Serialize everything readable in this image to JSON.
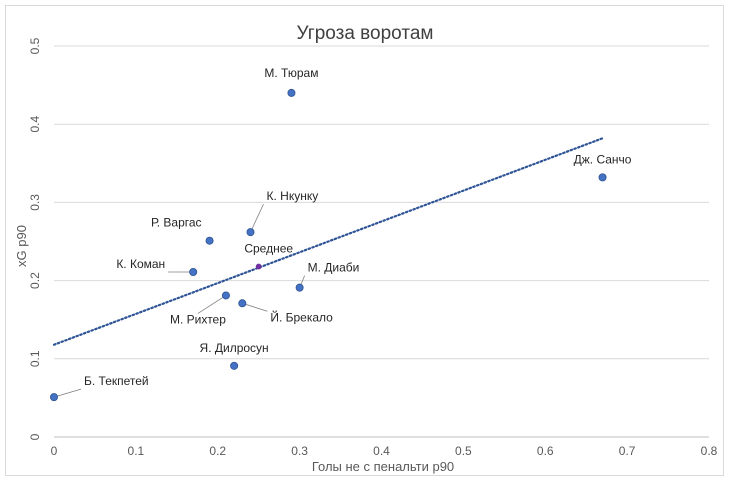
{
  "chart_data": {
    "type": "scatter",
    "title": "Угроза воротам",
    "xlabel": "Голы не с пенальти p90",
    "ylabel": "xG p90",
    "xlim": [
      0,
      0.8
    ],
    "ylim": [
      0,
      0.5
    ],
    "x_ticks": [
      "0",
      "0.1",
      "0.2",
      "0.3",
      "0.4",
      "0.5",
      "0.6",
      "0.7",
      "0.8"
    ],
    "y_ticks": [
      "0",
      "0.1",
      "0.2",
      "0.3",
      "0.4",
      "0.5"
    ],
    "grid": "horizontal",
    "colors": {
      "point": "#4472c4",
      "point_stroke": "#2f528f",
      "average": "#7030a0",
      "trendline": "#2f5597"
    },
    "points": [
      {
        "label": "М. Тюрам",
        "x": 0.29,
        "y": 0.44
      },
      {
        "label": "Дж. Санчо",
        "x": 0.67,
        "y": 0.332
      },
      {
        "label": "К. Нкунку",
        "x": 0.24,
        "y": 0.262
      },
      {
        "label": "Р. Варгас",
        "x": 0.19,
        "y": 0.251
      },
      {
        "label": "К. Коман",
        "x": 0.17,
        "y": 0.211
      },
      {
        "label": "М. Диаби",
        "x": 0.3,
        "y": 0.191
      },
      {
        "label": "М. Рихтер",
        "x": 0.21,
        "y": 0.181
      },
      {
        "label": "Й. Брекало",
        "x": 0.23,
        "y": 0.171
      },
      {
        "label": "Я. Дилросун",
        "x": 0.22,
        "y": 0.091
      },
      {
        "label": "Б. Текпетей",
        "x": 0.0,
        "y": 0.051
      }
    ],
    "average": {
      "label": "Среднее",
      "x": 0.25,
      "y": 0.218
    },
    "trendline": {
      "style": "dotted",
      "x": [
        0,
        0.67
      ],
      "y": [
        0.118,
        0.382
      ]
    }
  }
}
